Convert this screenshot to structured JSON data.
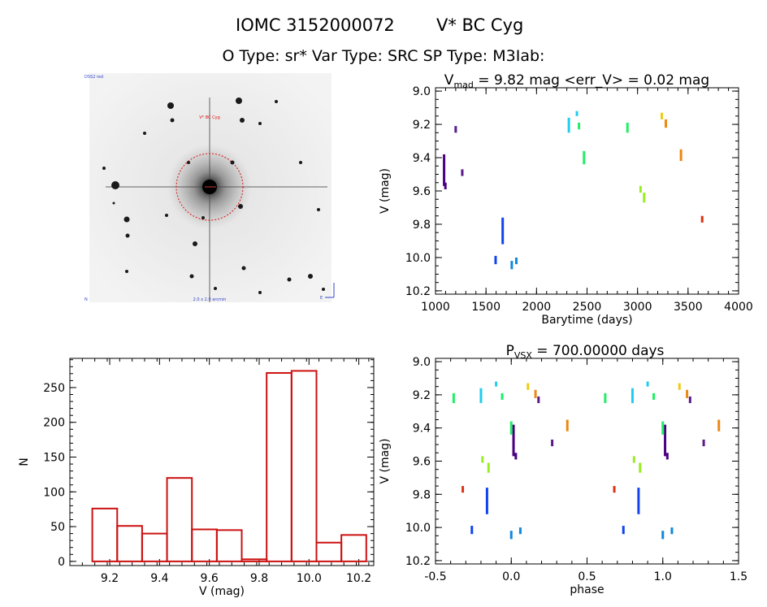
{
  "header": {
    "line1_left": "IOMC 3152000072",
    "line1_right": "V* BC Cyg",
    "line2": "O Type: sr*  Var Type: SRC  SP Type: M3Iab:"
  },
  "colors": {
    "hist_bar": "#cc1111",
    "circle": "#dd1111",
    "blue_text": "#3344cc",
    "palette": [
      "#4b0082",
      "#5a1a8a",
      "#1144ee",
      "#1188dd",
      "#22ccee",
      "#22ee66",
      "#99ee22",
      "#eecc11",
      "#ee8811",
      "#dd3311"
    ]
  },
  "image_panel": {
    "top_left_text": "DSS2 red",
    "top_center_text": "V* BC Cyg",
    "bottom_left_text": "N",
    "bottom_center_text": "2.0 x 2.0 arcmin",
    "bottom_right_text": "E"
  },
  "chart_data": [
    {
      "type": "scatter",
      "id": "light_curve",
      "title_main": "V",
      "title_sub": "mad",
      "title_rest": " = 9.82 mag <err_V> = 0.02 mag",
      "xlabel": "Barytime (days)",
      "ylabel": "V (mag)",
      "xlim": [
        1000,
        4000
      ],
      "ylim": [
        10.22,
        8.98
      ],
      "y_inverted": true,
      "xticks": [
        1000,
        1500,
        2000,
        2500,
        3000,
        3500,
        4000
      ],
      "yticks": [
        9.0,
        9.2,
        9.4,
        9.6,
        9.8,
        10.0,
        10.2
      ],
      "groups": [
        {
          "x": 1085,
          "y": [
            9.38,
            9.57
          ],
          "color": "#4b0082"
        },
        {
          "x": 1098,
          "y": [
            9.55,
            9.59
          ],
          "color": "#4b0082"
        },
        {
          "x": 1200,
          "y": [
            9.21,
            9.25
          ],
          "color": "#5a1a8a"
        },
        {
          "x": 1265,
          "y": [
            9.47,
            9.51
          ],
          "color": "#5a1a8a"
        },
        {
          "x": 1595,
          "y": [
            9.99,
            10.04
          ],
          "color": "#1144ee"
        },
        {
          "x": 1665,
          "y": [
            9.76,
            9.92
          ],
          "color": "#1144ee"
        },
        {
          "x": 1755,
          "y": [
            10.02,
            10.07
          ],
          "color": "#1188dd"
        },
        {
          "x": 1800,
          "y": [
            10.0,
            10.04
          ],
          "color": "#1188dd"
        },
        {
          "x": 2320,
          "y": [
            9.16,
            9.25
          ],
          "color": "#22ccee"
        },
        {
          "x": 2400,
          "y": [
            9.12,
            9.15
          ],
          "color": "#22ccee"
        },
        {
          "x": 2420,
          "y": [
            9.19,
            9.23
          ],
          "color": "#22ee66"
        },
        {
          "x": 2470,
          "y": [
            9.36,
            9.44
          ],
          "color": "#22ee66"
        },
        {
          "x": 2900,
          "y": [
            9.19,
            9.25
          ],
          "color": "#22ee66"
        },
        {
          "x": 3030,
          "y": [
            9.57,
            9.61
          ],
          "color": "#99ee22"
        },
        {
          "x": 3065,
          "y": [
            9.61,
            9.67
          ],
          "color": "#99ee22"
        },
        {
          "x": 3240,
          "y": [
            9.13,
            9.17
          ],
          "color": "#eecc11"
        },
        {
          "x": 3280,
          "y": [
            9.17,
            9.22
          ],
          "color": "#ee8811"
        },
        {
          "x": 3430,
          "y": [
            9.35,
            9.42
          ],
          "color": "#ee8811"
        },
        {
          "x": 3640,
          "y": [
            9.75,
            9.79
          ],
          "color": "#dd3311"
        }
      ]
    },
    {
      "type": "bar",
      "id": "histogram",
      "xlabel": "V (mag)",
      "ylabel": "N",
      "xlim": [
        9.04,
        10.26
      ],
      "ylim": [
        -6,
        292
      ],
      "xticks": [
        9.2,
        9.4,
        9.6,
        9.8,
        10.0,
        10.2
      ],
      "yticks": [
        0,
        50,
        100,
        150,
        200,
        250
      ],
      "bin_width": 0.1,
      "bin_starts": [
        9.13,
        9.23,
        9.33,
        9.43,
        9.53,
        9.63,
        9.73,
        9.83,
        9.93,
        10.03,
        10.13
      ],
      "values": [
        76,
        51,
        40,
        120,
        46,
        45,
        3,
        271,
        274,
        27,
        38
      ]
    },
    {
      "type": "scatter",
      "id": "phase_curve",
      "title_main": "P",
      "title_sub": "VSX",
      "title_rest": " = 700.00000 days",
      "xlabel": "phase",
      "ylabel": "V (mag)",
      "xlim": [
        -0.5,
        1.5
      ],
      "ylim": [
        10.22,
        8.98
      ],
      "y_inverted": true,
      "xticks": [
        -0.5,
        0.0,
        0.5,
        1.0,
        1.5
      ],
      "yticks": [
        9.0,
        9.2,
        9.4,
        9.6,
        9.8,
        10.0,
        10.2
      ],
      "groups": [
        {
          "x": 0.015,
          "y": [
            9.38,
            9.57
          ],
          "color": "#4b0082"
        },
        {
          "x": 0.03,
          "y": [
            9.55,
            9.59
          ],
          "color": "#4b0082"
        },
        {
          "x": 0.18,
          "y": [
            9.21,
            9.25
          ],
          "color": "#5a1a8a"
        },
        {
          "x": 0.27,
          "y": [
            9.47,
            9.51
          ],
          "color": "#5a1a8a"
        },
        {
          "x": -0.26,
          "y": [
            9.99,
            10.04
          ],
          "color": "#1144ee"
        },
        {
          "x": -0.16,
          "y": [
            9.76,
            9.92
          ],
          "color": "#1144ee"
        },
        {
          "x": 0.0,
          "y": [
            10.02,
            10.07
          ],
          "color": "#1188dd"
        },
        {
          "x": 0.06,
          "y": [
            10.0,
            10.04
          ],
          "color": "#1188dd"
        },
        {
          "x": -0.2,
          "y": [
            9.16,
            9.25
          ],
          "color": "#22ccee"
        },
        {
          "x": -0.1,
          "y": [
            9.12,
            9.15
          ],
          "color": "#22ccee"
        },
        {
          "x": -0.06,
          "y": [
            9.19,
            9.23
          ],
          "color": "#22ee66"
        },
        {
          "x": 0.0,
          "y": [
            9.36,
            9.44
          ],
          "color": "#22ee66"
        },
        {
          "x": -0.38,
          "y": [
            9.19,
            9.25
          ],
          "color": "#22ee66"
        },
        {
          "x": -0.19,
          "y": [
            9.57,
            9.61
          ],
          "color": "#99ee22"
        },
        {
          "x": -0.15,
          "y": [
            9.61,
            9.67
          ],
          "color": "#99ee22"
        },
        {
          "x": 0.11,
          "y": [
            9.13,
            9.17
          ],
          "color": "#eecc11"
        },
        {
          "x": 0.16,
          "y": [
            9.17,
            9.22
          ],
          "color": "#ee8811"
        },
        {
          "x": 0.37,
          "y": [
            9.35,
            9.42
          ],
          "color": "#ee8811"
        },
        {
          "x": -0.32,
          "y": [
            9.75,
            9.79
          ],
          "color": "#dd3311"
        }
      ],
      "repeat_offset": 1.0
    }
  ]
}
